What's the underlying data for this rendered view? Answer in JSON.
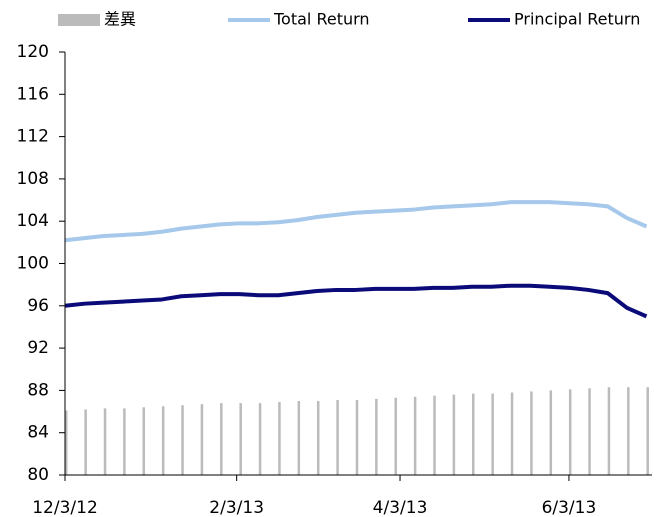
{
  "chart_data": {
    "type": "bar_line",
    "x": [
      "2012-12-03",
      "2012-12-10",
      "2012-12-17",
      "2012-12-24",
      "2012-12-31",
      "2013-01-07",
      "2013-01-14",
      "2013-01-21",
      "2013-01-28",
      "2013-02-04",
      "2013-02-11",
      "2013-02-18",
      "2013-02-25",
      "2013-03-04",
      "2013-03-11",
      "2013-03-18",
      "2013-03-25",
      "2013-04-01",
      "2013-04-08",
      "2013-04-15",
      "2013-04-22",
      "2013-04-29",
      "2013-05-06",
      "2013-05-13",
      "2013-05-20",
      "2013-05-27",
      "2013-06-03",
      "2013-06-10",
      "2013-06-17",
      "2013-06-24",
      "2013-07-01"
    ],
    "series": [
      {
        "name": "差異",
        "kind": "bar",
        "color": "#bbbbbb",
        "values": [
          86.1,
          86.2,
          86.3,
          86.3,
          86.4,
          86.5,
          86.6,
          86.7,
          86.8,
          86.8,
          86.8,
          86.9,
          87.0,
          87.0,
          87.1,
          87.1,
          87.2,
          87.3,
          87.4,
          87.5,
          87.6,
          87.7,
          87.7,
          87.8,
          87.9,
          88.0,
          88.1,
          88.2,
          88.3,
          88.3,
          88.3
        ]
      },
      {
        "name": "Total Return",
        "kind": "line",
        "color": "#a6c8ea",
        "values": [
          102.2,
          102.4,
          102.6,
          102.7,
          102.8,
          103.0,
          103.3,
          103.5,
          103.7,
          103.8,
          103.8,
          103.9,
          104.1,
          104.4,
          104.6,
          104.8,
          104.9,
          105.0,
          105.1,
          105.3,
          105.4,
          105.5,
          105.6,
          105.8,
          105.8,
          105.8,
          105.7,
          105.6,
          105.4,
          104.3,
          103.5
        ]
      },
      {
        "name": "Principal Return",
        "kind": "line",
        "color": "#0a0a78",
        "values": [
          96.0,
          96.2,
          96.3,
          96.4,
          96.5,
          96.6,
          96.9,
          97.0,
          97.1,
          97.1,
          97.0,
          97.0,
          97.2,
          97.4,
          97.5,
          97.5,
          97.6,
          97.6,
          97.6,
          97.7,
          97.7,
          97.8,
          97.8,
          97.9,
          97.9,
          97.8,
          97.7,
          97.5,
          97.2,
          95.8,
          95.0
        ]
      }
    ],
    "xlim": [
      "2012-12-03",
      "2013-07-03"
    ],
    "xticks": [
      {
        "value": "2012-12-03",
        "label": "12/3/12"
      },
      {
        "value": "2013-02-03",
        "label": "2/3/13"
      },
      {
        "value": "2013-04-03",
        "label": "4/3/13"
      },
      {
        "value": "2013-06-03",
        "label": "6/3/13"
      }
    ],
    "ylim": [
      80,
      120
    ],
    "yticks": [
      80,
      84,
      88,
      92,
      96,
      100,
      104,
      108,
      112,
      116,
      120
    ],
    "legend": "top",
    "grid": false
  }
}
